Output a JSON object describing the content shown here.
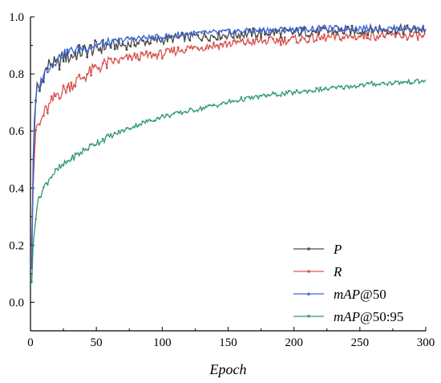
{
  "chart_data": {
    "type": "line",
    "xlabel": "Epoch",
    "ylabel": "",
    "xlim": [
      0,
      300
    ],
    "ylim": [
      -0.1,
      1.0
    ],
    "xticks": [
      "0",
      "50",
      "100",
      "150",
      "200",
      "250",
      "300"
    ],
    "yticks": [
      "0.0",
      "0.2",
      "0.4",
      "0.6",
      "0.8",
      "1.0"
    ],
    "grid": false,
    "legend_position": "bottom-right",
    "x": [
      1,
      2,
      3,
      4,
      5,
      7,
      10,
      15,
      20,
      25,
      30,
      40,
      50,
      60,
      70,
      80,
      100,
      120,
      140,
      160,
      180,
      200,
      220,
      240,
      260,
      280,
      300
    ],
    "series": [
      {
        "name": "P",
        "name_parts": [
          "P",
          ""
        ],
        "color": "#4a4a4a",
        "marker": "square",
        "values": [
          0.2,
          0.45,
          0.6,
          0.72,
          0.75,
          0.74,
          0.8,
          0.84,
          0.83,
          0.86,
          0.86,
          0.88,
          0.89,
          0.9,
          0.9,
          0.91,
          0.92,
          0.93,
          0.935,
          0.94,
          0.945,
          0.945,
          0.95,
          0.95,
          0.955,
          0.955,
          0.955
        ]
      },
      {
        "name": "R",
        "name_parts": [
          "R",
          ""
        ],
        "color": "#d9534f",
        "marker": "circle",
        "values": [
          0.15,
          0.4,
          0.52,
          0.58,
          0.62,
          0.62,
          0.66,
          0.69,
          0.73,
          0.74,
          0.76,
          0.79,
          0.82,
          0.84,
          0.85,
          0.86,
          0.87,
          0.89,
          0.9,
          0.91,
          0.915,
          0.92,
          0.925,
          0.93,
          0.935,
          0.935,
          0.93
        ]
      },
      {
        "name": "mAP@50",
        "name_parts": [
          "mAP",
          "@50"
        ],
        "color": "#3a64d8",
        "marker": "triangle-up",
        "values": [
          0.12,
          0.5,
          0.63,
          0.7,
          0.74,
          0.76,
          0.8,
          0.83,
          0.85,
          0.87,
          0.88,
          0.89,
          0.9,
          0.91,
          0.92,
          0.925,
          0.93,
          0.94,
          0.945,
          0.95,
          0.955,
          0.955,
          0.96,
          0.96,
          0.96,
          0.96,
          0.96
        ]
      },
      {
        "name": "mAP@50:95",
        "name_parts": [
          "mAP",
          "@50:95"
        ],
        "color": "#2e9a6a",
        "marker": "triangle-down",
        "values": [
          0.07,
          0.2,
          0.26,
          0.3,
          0.34,
          0.37,
          0.4,
          0.44,
          0.46,
          0.48,
          0.5,
          0.53,
          0.56,
          0.58,
          0.6,
          0.62,
          0.65,
          0.67,
          0.69,
          0.71,
          0.725,
          0.735,
          0.745,
          0.755,
          0.765,
          0.77,
          0.775
        ]
      }
    ]
  }
}
